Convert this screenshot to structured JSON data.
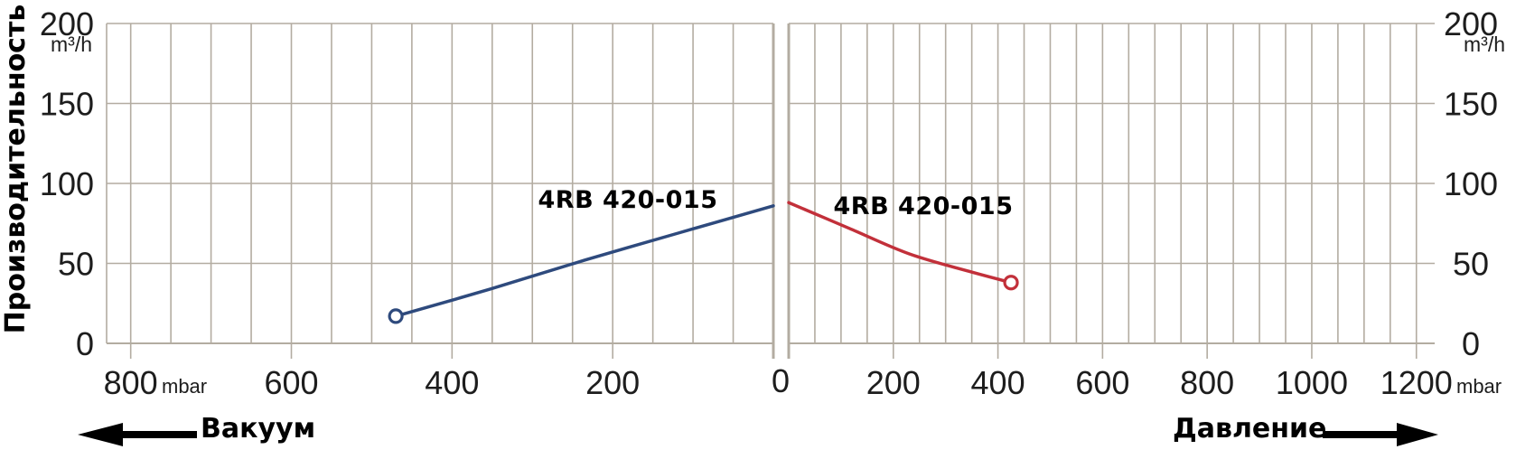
{
  "chart_data": {
    "type": "line",
    "title": "",
    "ylabel": "Производительность",
    "y_unit": "m³/h",
    "x_unit": "mbar",
    "y_ticks": [
      0,
      50,
      100,
      150,
      200
    ],
    "ylim": [
      0,
      200
    ],
    "grid_step_mbar": 50,
    "grid_on": true,
    "grid_color": "#b3aca1",
    "shared_zero_label": "0",
    "panels": [
      {
        "name": "vacuum",
        "arrow_label": "Вакуум",
        "arrow_direction": "left",
        "x_axis_reversed": true,
        "x_ticks": [
          800,
          600,
          400,
          200
        ],
        "xlim": [
          0,
          830
        ],
        "series": [
          {
            "name": "4RB 420-015",
            "color": "#2e4a7d",
            "marker_at": "start",
            "marker_style": "open-circle",
            "points_mbar_m3h": [
              [
                470,
                17
              ],
              [
                352,
                34
              ],
              [
                235,
                52
              ],
              [
                118,
                69
              ],
              [
                0,
                86
              ]
            ]
          }
        ]
      },
      {
        "name": "pressure",
        "arrow_label": "Давление",
        "arrow_direction": "right",
        "x_axis_reversed": false,
        "x_ticks": [
          200,
          400,
          600,
          800,
          1000,
          1200
        ],
        "xlim": [
          0,
          1235
        ],
        "series": [
          {
            "name": "4RB 420-015",
            "color": "#c2303a",
            "marker_at": "end",
            "marker_style": "open-circle",
            "points_mbar_m3h": [
              [
                0,
                88
              ],
              [
                115,
                72
              ],
              [
                230,
                56
              ],
              [
                345,
                45
              ],
              [
                425,
                38
              ]
            ]
          }
        ]
      }
    ]
  }
}
